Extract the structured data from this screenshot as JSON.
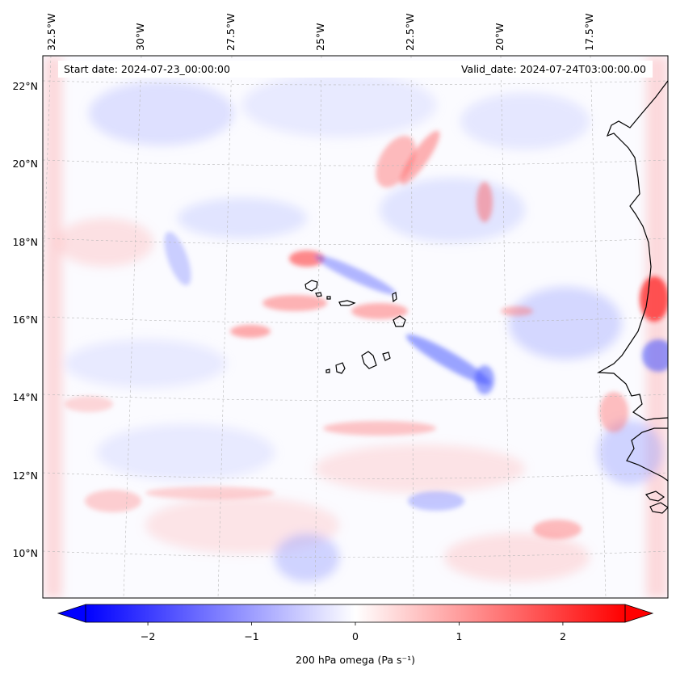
{
  "header": {
    "start_date": "Start date: 2024-07-23_00:00:00",
    "valid_date": "Valid_date: 2024-07-24T03:00:00.00"
  },
  "map": {
    "projection": "lambert-conformal",
    "lat_labels": [
      "22°N",
      "20°N",
      "18°N",
      "16°N",
      "14°N",
      "12°N",
      "10°N"
    ],
    "lon_labels": [
      "32.5°W",
      "30°W",
      "27.5°W",
      "25°W",
      "22.5°W",
      "20°W",
      "17.5°W"
    ],
    "gridlines": true,
    "gridline_style": "dashed",
    "coastlines": [
      "Cabo Verde islands",
      "West African coast"
    ],
    "field": "200 hPa vertical velocity (omega)"
  },
  "colorbar": {
    "label": "200 hPa omega (Pa s⁻¹)",
    "ticks": [
      "−2",
      "−1",
      "0",
      "1",
      "2"
    ],
    "tick_values": [
      -2,
      -1,
      0,
      1,
      2
    ],
    "range": [
      -2.6,
      2.6
    ],
    "extend": "both",
    "colormap": "bwr",
    "colors": {
      "negative": "#0000ff",
      "zero": "#ffffff",
      "positive": "#ff0000"
    }
  }
}
